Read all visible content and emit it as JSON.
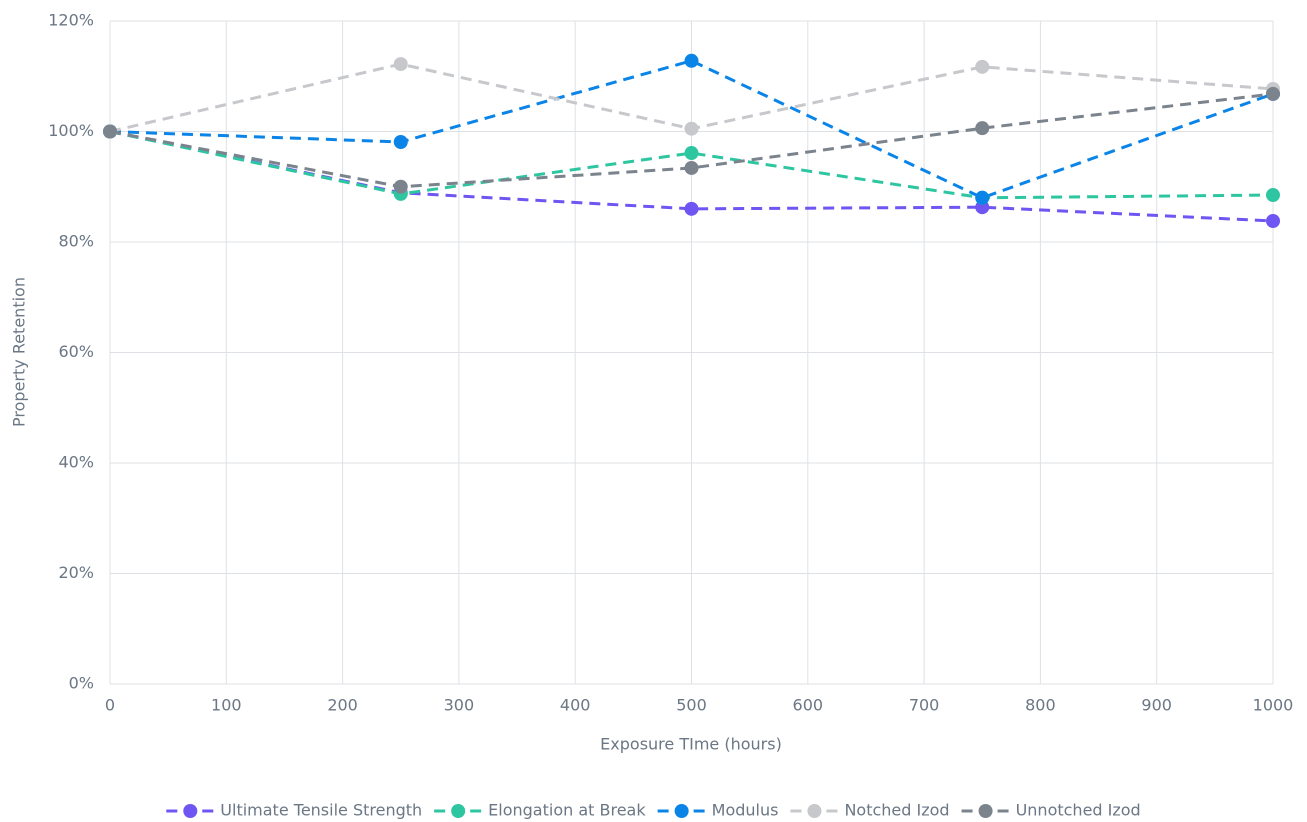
{
  "chart_data": {
    "type": "line",
    "xlabel": "Exposure TIme (hours)",
    "ylabel": "Property Retention",
    "x": [
      0,
      250,
      500,
      750,
      1000
    ],
    "series": [
      {
        "name": "Ultimate Tensile Strength",
        "color": "#6f55f2",
        "values": [
          100,
          88.9,
          86.0,
          86.3,
          83.8
        ]
      },
      {
        "name": "Elongation at Break",
        "color": "#2ec6a0",
        "values": [
          100,
          88.7,
          96.1,
          88.0,
          88.5
        ]
      },
      {
        "name": "Modulus",
        "color": "#0b84e8",
        "values": [
          100,
          98.1,
          112.8,
          88.0,
          106.8
        ]
      },
      {
        "name": "Notched Izod",
        "color": "#c6c8cb",
        "values": [
          100,
          112.2,
          100.5,
          111.7,
          107.7
        ]
      },
      {
        "name": "Unnotched Izod",
        "color": "#7b838d",
        "values": [
          100,
          90.0,
          93.4,
          100.6,
          106.8
        ]
      }
    ],
    "xlim": [
      0,
      1000
    ],
    "xticks": [
      0,
      100,
      200,
      300,
      400,
      500,
      600,
      700,
      800,
      900,
      1000
    ],
    "ylim": [
      0,
      120
    ],
    "yticks": [
      {
        "value": 0,
        "label": "0%"
      },
      {
        "value": 20,
        "label": "20%"
      },
      {
        "value": 40,
        "label": "40%"
      },
      {
        "value": 60,
        "label": "60%"
      },
      {
        "value": 80,
        "label": "80%"
      },
      {
        "value": 100,
        "label": "100%"
      },
      {
        "value": 120,
        "label": "120%"
      }
    ],
    "grid": true,
    "legend": "bottom"
  }
}
